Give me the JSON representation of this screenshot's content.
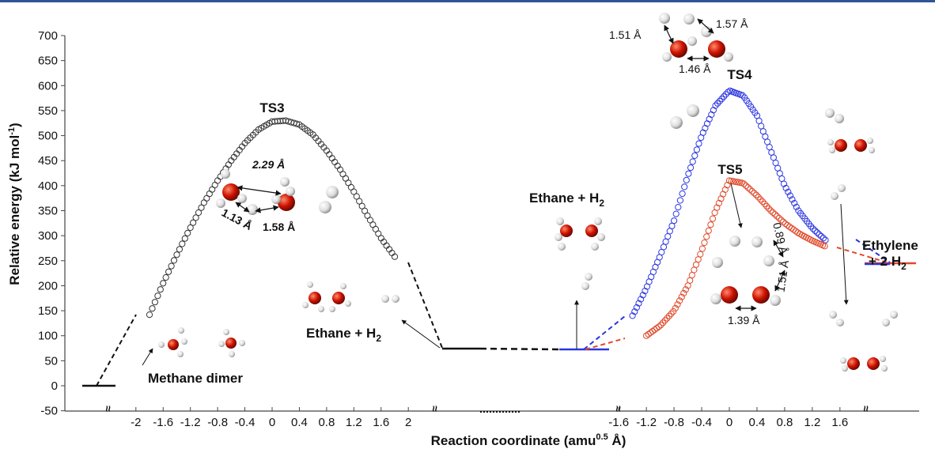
{
  "chart_data": {
    "type": "line",
    "ylabel": "Relative energy (kJ mol",
    "ylabel_sup": "-1",
    "ylabel_close": ")",
    "xlabel": "Reaction coordinate (amu",
    "xlabel_sup": "0.5",
    "xlabel_close": " Å)",
    "ylim": [
      -50,
      700
    ],
    "yticks": [
      "-50",
      "0",
      "50",
      "100",
      "150",
      "200",
      "250",
      "300",
      "350",
      "400",
      "450",
      "500",
      "550",
      "600",
      "650",
      "700"
    ],
    "xticks_left": [
      "-2",
      "-1.6",
      "-1.2",
      "-0.8",
      "-0.4",
      "0",
      "0.4",
      "0.8",
      "1.2",
      "1.6",
      "2"
    ],
    "xticks_right": [
      "-1.6",
      "-1.2",
      "-0.8",
      "-0.4",
      "0",
      "0.4",
      "0.8",
      "1.2",
      "1.6"
    ],
    "break_symbol": "≈",
    "colors": {
      "ts3": "#333333",
      "ts4": "#2b35e0",
      "ts5": "#e0492a",
      "atom_o": "#cc1100",
      "atom_h": "#e8e8e8",
      "axis": "#444444"
    },
    "series": [
      {
        "name": "TS3",
        "x": [
          -1.8,
          -1.6,
          -1.4,
          -1.2,
          -1.0,
          -0.8,
          -0.6,
          -0.4,
          -0.2,
          0,
          0.2,
          0.4,
          0.6,
          0.8,
          1.0,
          1.2,
          1.4,
          1.6,
          1.8
        ],
        "y": [
          142,
          205,
          262,
          316,
          366,
          410,
          450,
          485,
          512,
          528,
          530,
          522,
          502,
          470,
          432,
          388,
          340,
          295,
          258
        ]
      },
      {
        "name": "TS4",
        "x": [
          -1.4,
          -1.2,
          -1.0,
          -0.8,
          -0.6,
          -0.4,
          -0.2,
          0,
          0.2,
          0.4,
          0.6,
          0.8,
          1.0,
          1.2,
          1.4
        ],
        "y": [
          140,
          195,
          260,
          330,
          420,
          500,
          560,
          590,
          580,
          540,
          470,
          400,
          350,
          315,
          290
        ]
      },
      {
        "name": "TS5",
        "x": [
          -1.2,
          -1.0,
          -0.8,
          -0.6,
          -0.4,
          -0.2,
          0,
          0.2,
          0.4,
          0.6,
          0.8,
          1.0,
          1.2,
          1.4
        ],
        "y": [
          100,
          120,
          150,
          200,
          270,
          350,
          410,
          405,
          380,
          350,
          325,
          305,
          290,
          278
        ]
      }
    ],
    "levels": {
      "methane_dimer": 0,
      "ethane_h2": 73,
      "ethylene_2h2": 245
    },
    "annotations": {
      "ts3": "TS3",
      "ts4": "TS4",
      "ts5": "TS5",
      "methane_dimer": "Methane dimer",
      "ethane_h2_left": "Ethane + H",
      "ethane_h2_mid": "Ethane + H",
      "h2_sub": "2",
      "ethylene_line1": "Ethylene",
      "ethylene_line2": "+  2 H",
      "dist_229": "2.29 Å",
      "dist_113": "1.13 Å",
      "dist_158": "1.58 Å",
      "dist_151_top": "1.51 Å",
      "dist_157": "1.57 Å",
      "dist_146": "1.46 Å",
      "dist_089": "0.89 Å",
      "dist_151_ts5": "1.51 Å",
      "dist_139": "1.39 Å"
    }
  }
}
